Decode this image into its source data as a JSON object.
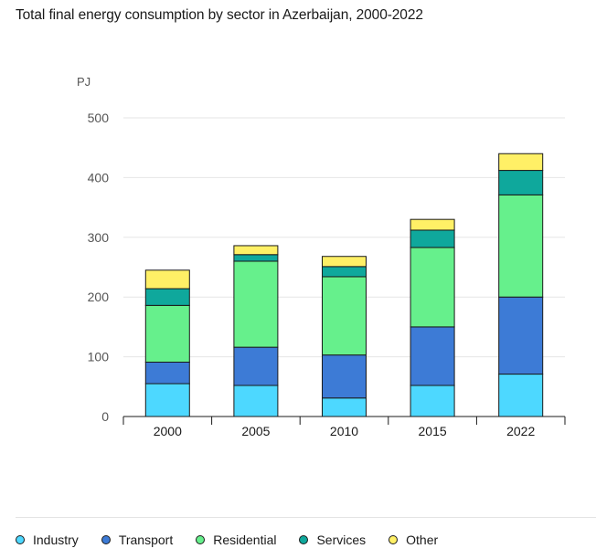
{
  "title": "Total final energy consumption by sector in Azerbaijan, 2000-2022",
  "chart_data": {
    "type": "bar",
    "stacked": true,
    "categories": [
      "2000",
      "2005",
      "2010",
      "2015",
      "2022"
    ],
    "ylabel": "PJ",
    "ylim": [
      0,
      500
    ],
    "yticks": [
      "0",
      "100",
      "200",
      "300",
      "400",
      "500"
    ],
    "grid": true,
    "legend_position": "bottom",
    "series": [
      {
        "name": "Industry",
        "color": "#4dd8ff",
        "values": [
          55,
          52,
          31,
          52,
          71
        ]
      },
      {
        "name": "Transport",
        "color": "#3d7bd6",
        "values": [
          36,
          64,
          72,
          98,
          129
        ]
      },
      {
        "name": "Residential",
        "color": "#66f08c",
        "values": [
          95,
          144,
          131,
          133,
          171
        ]
      },
      {
        "name": "Services",
        "color": "#0fa89c",
        "values": [
          28,
          11,
          17,
          29,
          41
        ]
      },
      {
        "name": "Other",
        "color": "#fff066",
        "values": [
          31,
          15,
          17,
          18,
          28
        ]
      }
    ]
  }
}
